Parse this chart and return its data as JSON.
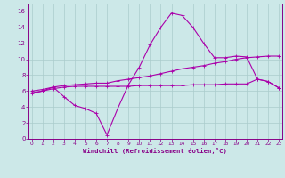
{
  "xlabel": "Windchill (Refroidissement éolien,°C)",
  "bg_color": "#cce8e8",
  "grid_color": "#aacccc",
  "line_color": "#880088",
  "line_color2": "#aa00aa",
  "x_ticks": [
    0,
    1,
    2,
    3,
    4,
    5,
    6,
    7,
    8,
    9,
    10,
    11,
    12,
    13,
    14,
    15,
    16,
    17,
    18,
    19,
    20,
    21,
    22,
    23
  ],
  "y_ticks": [
    0,
    2,
    4,
    6,
    8,
    10,
    12,
    14,
    16
  ],
  "xlim": [
    -0.3,
    23.3
  ],
  "ylim": [
    0,
    17
  ],
  "series1_x": [
    0,
    1,
    2,
    3,
    4,
    5,
    6,
    7,
    8,
    9,
    10,
    11,
    12,
    13,
    14,
    15,
    16,
    17,
    18,
    19,
    20,
    21,
    22,
    23
  ],
  "series1_y": [
    5.7,
    6.0,
    6.5,
    5.3,
    4.2,
    3.8,
    3.2,
    0.5,
    3.8,
    6.8,
    9.0,
    11.8,
    14.0,
    15.8,
    15.5,
    14.0,
    12.0,
    10.2,
    10.2,
    10.4,
    10.3,
    7.5,
    7.2,
    6.4
  ],
  "series2_x": [
    0,
    1,
    2,
    3,
    4,
    5,
    6,
    7,
    8,
    9,
    10,
    11,
    12,
    13,
    14,
    15,
    16,
    17,
    18,
    19,
    20,
    21,
    22,
    23
  ],
  "series2_y": [
    6.0,
    6.2,
    6.5,
    6.7,
    6.8,
    6.9,
    7.0,
    7.0,
    7.3,
    7.5,
    7.7,
    7.9,
    8.2,
    8.5,
    8.8,
    9.0,
    9.2,
    9.5,
    9.7,
    10.0,
    10.2,
    10.3,
    10.4,
    10.4
  ],
  "series3_x": [
    0,
    1,
    2,
    3,
    4,
    5,
    6,
    7,
    8,
    9,
    10,
    11,
    12,
    13,
    14,
    15,
    16,
    17,
    18,
    19,
    20,
    21,
    22,
    23
  ],
  "series3_y": [
    5.8,
    6.0,
    6.3,
    6.5,
    6.6,
    6.6,
    6.6,
    6.6,
    6.6,
    6.6,
    6.7,
    6.7,
    6.7,
    6.7,
    6.7,
    6.8,
    6.8,
    6.8,
    6.9,
    6.9,
    6.9,
    7.5,
    7.2,
    6.4
  ]
}
